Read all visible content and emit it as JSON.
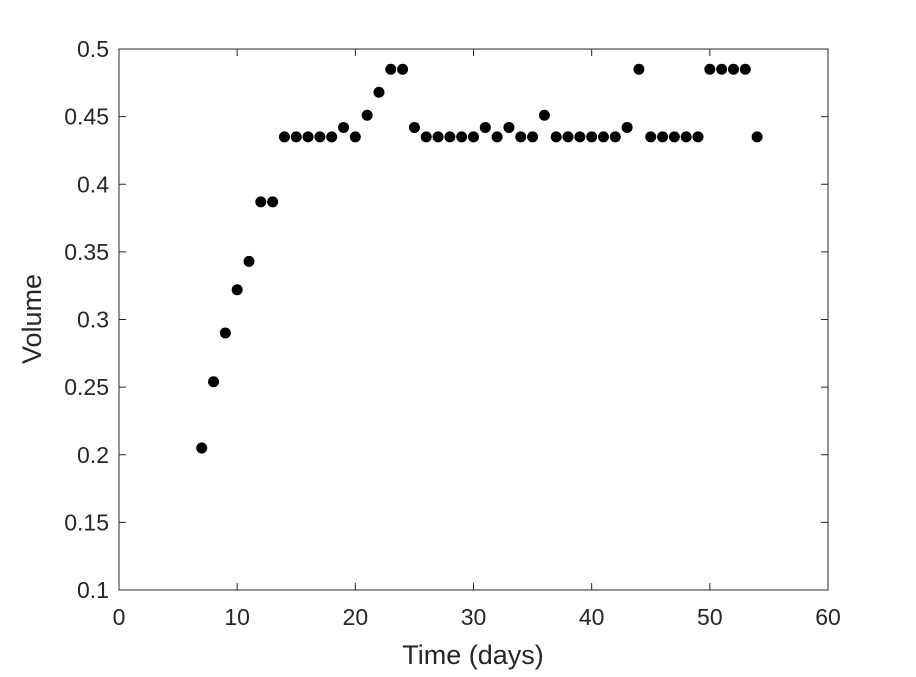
{
  "chart_data": {
    "type": "scatter",
    "title": "",
    "xlabel": "Time (days)",
    "ylabel": "Volume",
    "xlim": [
      0,
      60
    ],
    "ylim": [
      0.1,
      0.5
    ],
    "x_ticks": [
      "0",
      "10",
      "20",
      "30",
      "40",
      "50",
      "60"
    ],
    "y_ticks": [
      "0.1",
      "0.15",
      "0.2",
      "0.25",
      "0.3",
      "0.35",
      "0.4",
      "0.45",
      "0.5"
    ],
    "grid": false,
    "legend": "none",
    "marker_color": "#000000",
    "axis_color": "#262626",
    "series": [
      {
        "x": [
          7,
          8,
          9,
          10,
          11,
          12,
          13,
          14,
          15,
          16,
          17,
          18,
          19,
          20,
          21,
          22,
          23,
          24,
          25,
          26,
          27,
          28,
          29,
          30,
          31,
          32,
          33,
          34,
          35,
          36,
          37,
          38,
          39,
          40,
          41,
          42,
          43,
          44,
          45,
          46,
          47,
          48,
          49,
          50,
          51,
          52,
          53,
          54
        ],
        "y": [
          0.205,
          0.254,
          0.29,
          0.322,
          0.343,
          0.387,
          0.387,
          0.435,
          0.435,
          0.435,
          0.435,
          0.435,
          0.442,
          0.435,
          0.451,
          0.468,
          0.485,
          0.485,
          0.442,
          0.435,
          0.435,
          0.435,
          0.435,
          0.435,
          0.442,
          0.435,
          0.442,
          0.435,
          0.435,
          0.451,
          0.435,
          0.435,
          0.435,
          0.435,
          0.435,
          0.435,
          0.442,
          0.485,
          0.435,
          0.435,
          0.435,
          0.435,
          0.435,
          0.485,
          0.485,
          0.485,
          0.485,
          0.435
        ]
      }
    ]
  }
}
